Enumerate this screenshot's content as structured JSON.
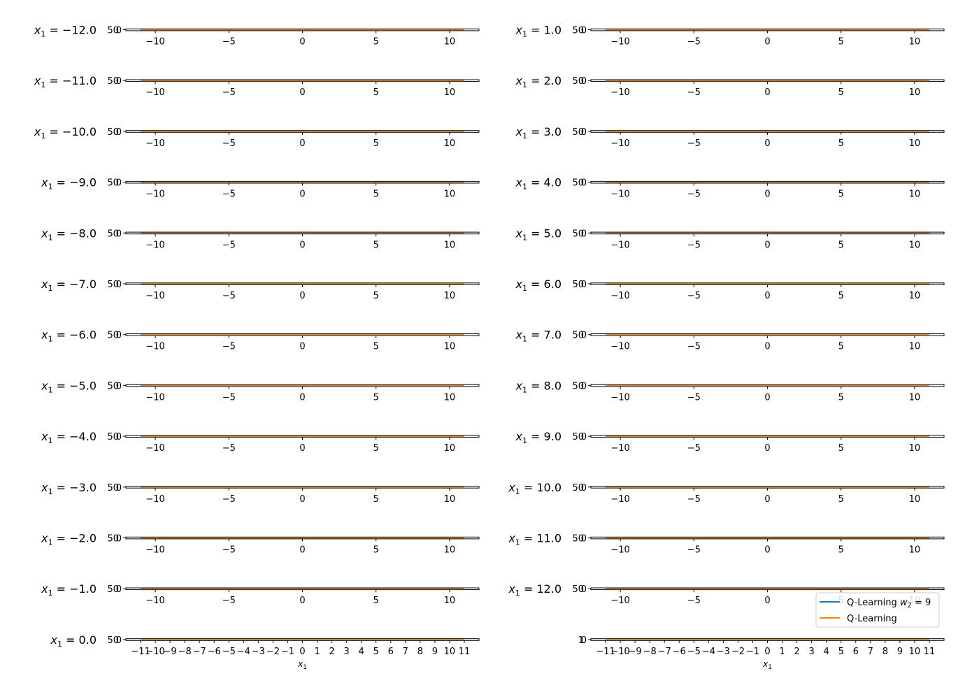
{
  "chart_data": {
    "type": "line",
    "xlabel": "x₁",
    "ytick_labels": [
      "50",
      "0"
    ],
    "last_row_ytick_labels": {
      "left": [
        "50",
        "0"
      ],
      "right": [
        "1",
        "0"
      ]
    },
    "xlim": [
      -12,
      12
    ],
    "xticks_default": [
      -10,
      -5,
      0,
      5,
      10
    ],
    "xticks_last_row": [
      -11,
      -10,
      -9,
      -8,
      -7,
      -6,
      -5,
      -4,
      -3,
      -2,
      -1,
      0,
      1,
      2,
      3,
      4,
      5,
      6,
      7,
      8,
      9,
      10,
      11
    ],
    "colors": {
      "q_learning_w2": "#1f77b4",
      "q_learning": "#ff7f0e",
      "axis": "#000000"
    },
    "legend": {
      "placement": "lower-right of last right-column panel",
      "entries": [
        {
          "label": "Q-Learning",
          "math": "w₂ = 9",
          "color": "#1f77b4"
        },
        {
          "label": "Q-Learning",
          "color": "#ff7f0e"
        }
      ]
    },
    "panels_left": [
      {
        "label": "x₁ = −12.0"
      },
      {
        "label": "x₁ = −11.0"
      },
      {
        "label": "x₁ = −10.0"
      },
      {
        "label": "x₁ = −9.0"
      },
      {
        "label": "x₁ = −8.0"
      },
      {
        "label": "x₁ = −7.0"
      },
      {
        "label": "x₁ = −6.0"
      },
      {
        "label": "x₁ = −5.0"
      },
      {
        "label": "x₁ = −4.0"
      },
      {
        "label": "x₁ = −3.0"
      },
      {
        "label": "x₁ = −2.0"
      },
      {
        "label": "x₁ = −1.0"
      },
      {
        "label": "x₁ = 0.0"
      }
    ],
    "panels_right": [
      {
        "label": "x₁ = 1.0"
      },
      {
        "label": "x₁ = 2.0"
      },
      {
        "label": "x₁ = 3.0"
      },
      {
        "label": "x₁ = 4.0"
      },
      {
        "label": "x₁ = 5.0"
      },
      {
        "label": "x₁ = 6.0"
      },
      {
        "label": "x₁ = 7.0"
      },
      {
        "label": "x₁ = 8.0"
      },
      {
        "label": "x₁ = 9.0"
      },
      {
        "label": "x₁ = 10.0"
      },
      {
        "label": "x₁ = 11.0"
      },
      {
        "label": "x₁ = 12.0"
      },
      {
        "label": ""
      }
    ],
    "series": [
      {
        "name": "Q-Learning w₂ = 9",
        "x": [
          -11,
          11
        ],
        "y": [
          0,
          0
        ]
      },
      {
        "name": "Q-Learning",
        "x": [
          -11,
          11
        ],
        "y": [
          0,
          0
        ]
      }
    ]
  }
}
